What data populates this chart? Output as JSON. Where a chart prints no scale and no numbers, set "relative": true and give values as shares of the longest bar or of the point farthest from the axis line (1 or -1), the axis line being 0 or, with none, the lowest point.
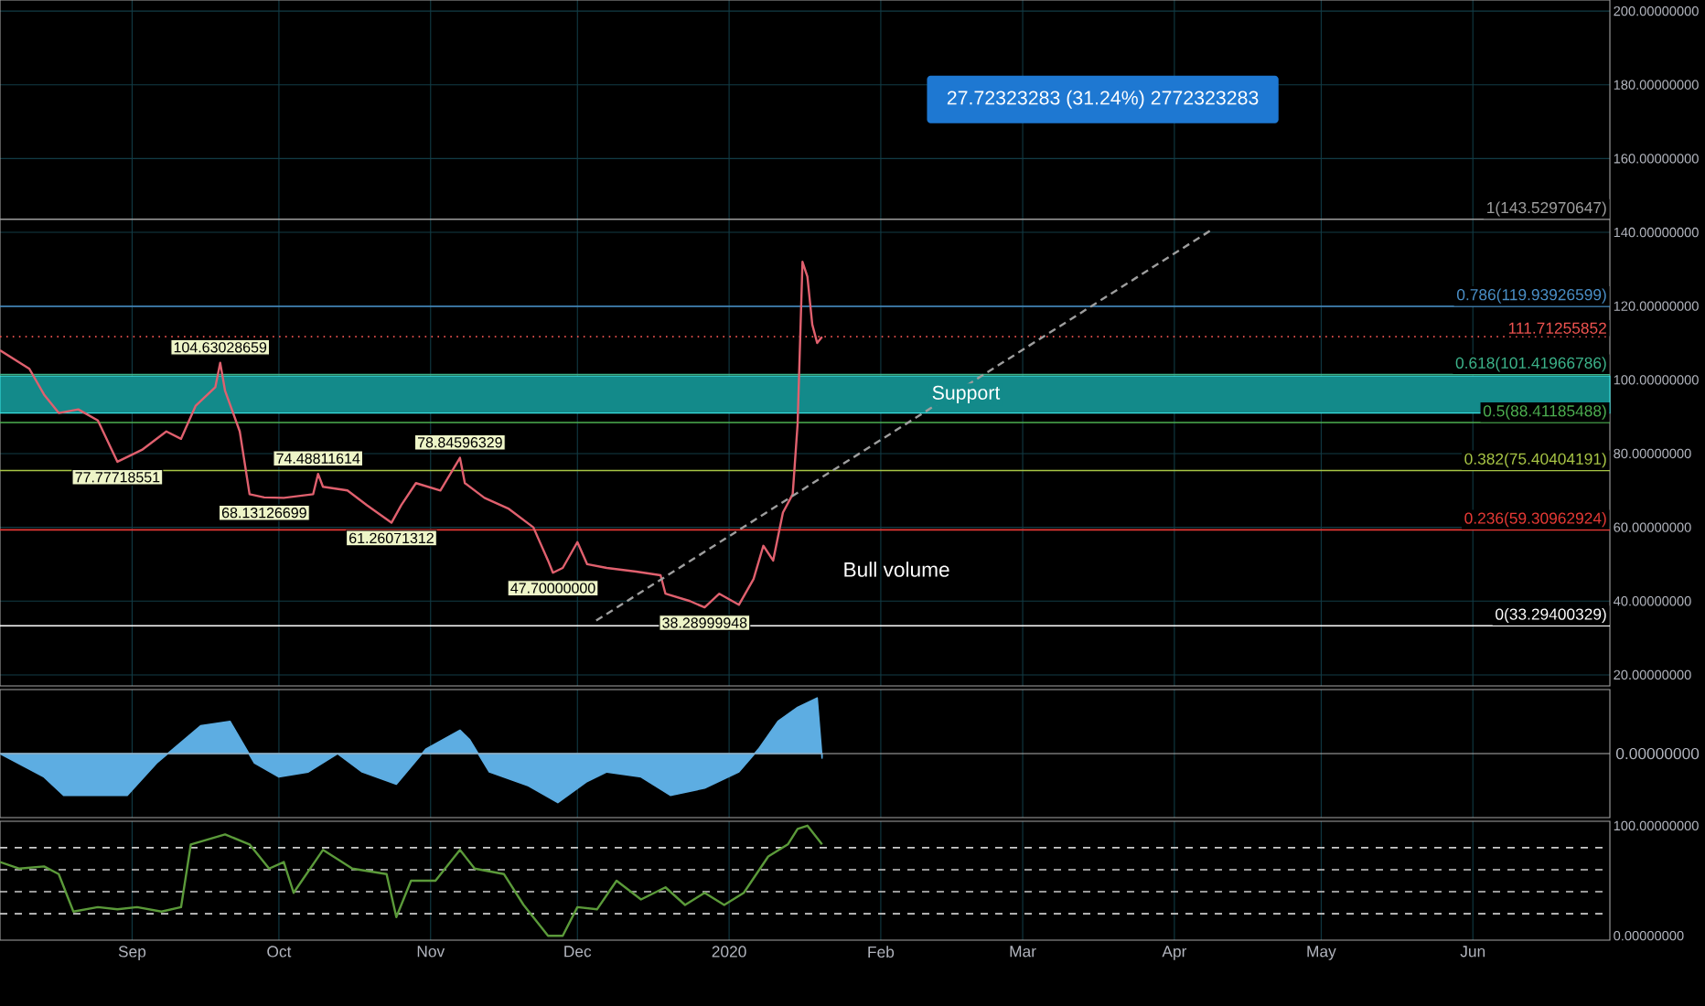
{
  "chart_data": [
    {
      "type": "line",
      "x": [
        "2019-08-05",
        "2019-08-11",
        "2019-08-14",
        "2019-08-17",
        "2019-08-21",
        "2019-08-25",
        "2019-08-29",
        "2019-09-03",
        "2019-09-08",
        "2019-09-11",
        "2019-09-14",
        "2019-09-18",
        "2019-09-19",
        "2019-09-20",
        "2019-09-23",
        "2019-09-25",
        "2019-09-28",
        "2019-10-02",
        "2019-10-08",
        "2019-10-09",
        "2019-10-10",
        "2019-10-15",
        "2019-10-19",
        "2019-10-24",
        "2019-10-26",
        "2019-10-29",
        "2019-11-03",
        "2019-11-07",
        "2019-11-08",
        "2019-11-12",
        "2019-11-17",
        "2019-11-22",
        "2019-11-25",
        "2019-11-26",
        "2019-11-28",
        "2019-12-01",
        "2019-12-03",
        "2019-12-07",
        "2019-12-13",
        "2019-12-18",
        "2019-12-19",
        "2019-12-24",
        "2019-12-27",
        "2019-12-30",
        "2020-01-03",
        "2020-01-06",
        "2020-01-08",
        "2020-01-10",
        "2020-01-12",
        "2020-01-14",
        "2020-01-15",
        "2020-01-16",
        "2020-01-17",
        "2020-01-18",
        "2020-01-19",
        "2020-01-20"
      ],
      "series": [
        {
          "color": "#e0606e",
          "values": [
            108,
            103,
            96,
            91,
            92,
            89,
            77.78,
            81,
            86,
            84,
            93,
            98,
            104.63,
            97,
            86,
            69,
            68.13,
            68,
            69,
            74.49,
            71,
            70,
            66,
            61.26,
            66,
            72,
            70,
            78.85,
            72,
            68,
            65,
            60,
            51,
            47.7,
            49,
            56,
            50,
            49,
            48,
            47,
            42,
            40,
            38.29,
            42,
            39,
            46,
            55,
            51,
            64,
            69,
            88,
            132,
            128,
            115,
            110,
            111.7
          ]
        },
        {
          "type": "line",
          "x": [
            "2019-12-04",
            "2020-04-09"
          ],
          "values": [
            34,
            141
          ],
          "color": "#9e9e9e",
          "line_style": "dashed"
        }
      ],
      "xlim": [
        "2019-08-05",
        "2020-06-29"
      ],
      "xticks": [
        {
          "value": "2019-09-01",
          "label": null
        },
        {
          "value": "2019-10-01",
          "label": null
        },
        {
          "value": "2019-11-01",
          "label": null
        },
        {
          "value": "2019-12-01",
          "label": null
        },
        {
          "value": "2020-01-01",
          "label": null
        },
        {
          "value": "2020-02-01",
          "label": null
        },
        {
          "value": "2020-03-01",
          "label": null
        },
        {
          "value": "2020-04-01",
          "label": null
        },
        {
          "value": "2020-05-01",
          "label": null
        },
        {
          "value": "2020-06-01",
          "label": null
        }
      ],
      "ylim": [
        17,
        203
      ],
      "yticks": [
        {
          "value": 20,
          "label": "20.00000000"
        },
        {
          "value": 40,
          "label": "40.00000000"
        },
        {
          "value": 60,
          "label": "60.00000000"
        },
        {
          "value": 80,
          "label": "80.00000000"
        },
        {
          "value": 100,
          "label": "100.00000000"
        },
        {
          "value": 120,
          "label": "120.00000000"
        },
        {
          "value": 140,
          "label": "140.00000000"
        },
        {
          "value": 160,
          "label": "160.00000000"
        },
        {
          "value": 180,
          "label": "180.00000000"
        },
        {
          "value": 200,
          "label": "200.00000000"
        }
      ],
      "tick_labels": "y",
      "grid": true,
      "ref_lines": [
        {
          "axis": "y",
          "value": 143.52970647,
          "label": "1(143.52970647)",
          "color": "#9e9e9e"
        },
        {
          "axis": "y",
          "value": 119.93926599,
          "label": "0.786(119.93926599)",
          "color": "#4a8fc7"
        },
        {
          "axis": "y",
          "value": 111.71255852,
          "label": "111.71255852",
          "color": "#ef5350",
          "line_style": "dotted"
        },
        {
          "axis": "y",
          "value": 101.41966786,
          "label": "0.618(101.41966786)",
          "color": "#3cb38a"
        },
        {
          "axis": "y",
          "value": 88.41185488,
          "label": "0.5(88.41185488)",
          "color": "#4caf50"
        },
        {
          "axis": "y",
          "value": 75.40404191,
          "label": "0.382(75.40404191)",
          "color": "#a8c545"
        },
        {
          "axis": "y",
          "value": 59.30962924,
          "label": "0.236(59.30962924)",
          "color": "#e53935"
        },
        {
          "axis": "y",
          "value": 33.29400329,
          "label": "0(33.29400329)",
          "color": "#ffffff"
        }
      ],
      "bands": [
        {
          "axis": "y",
          "from": 91,
          "to": 101,
          "label": "Support",
          "color": "#138a8a"
        }
      ],
      "annotations": [
        "27.72323283 (31.24%) 2772323283",
        "Bull volume",
        {
          "text": "104.63028659",
          "x": "2019-09-19",
          "y": 104.63
        },
        {
          "text": "77.77718551",
          "x": "2019-08-29",
          "y": 77.78
        },
        {
          "text": "68.13126699",
          "x": "2019-09-28",
          "y": 68.13
        },
        {
          "text": "74.48811614",
          "x": "2019-10-09",
          "y": 74.49
        },
        {
          "text": "78.84596329",
          "x": "2019-11-07",
          "y": 78.85
        },
        {
          "text": "61.26071312",
          "x": "2019-10-24",
          "y": 61.26
        },
        {
          "text": "47.70000000",
          "x": "2019-11-26",
          "y": 47.7
        },
        {
          "text": "38.28999948",
          "x": "2019-12-27",
          "y": 38.29
        }
      ]
    },
    {
      "type": "area",
      "relative": true,
      "x": [
        "2019-08-05",
        "2019-08-14",
        "2019-08-18",
        "2019-08-31",
        "2019-09-06",
        "2019-09-15",
        "2019-09-21",
        "2019-09-26",
        "2019-10-01",
        "2019-10-07",
        "2019-10-13",
        "2019-10-18",
        "2019-10-25",
        "2019-10-31",
        "2019-11-07",
        "2019-11-09",
        "2019-11-13",
        "2019-11-21",
        "2019-11-27",
        "2019-12-03",
        "2019-12-07",
        "2019-12-14",
        "2019-12-20",
        "2019-12-27",
        "2020-01-03",
        "2020-01-07",
        "2020-01-11",
        "2020-01-15",
        "2020-01-19",
        "2020-01-20"
      ],
      "series": [
        {
          "color": "#5dade2",
          "values": [
            0,
            -0.42,
            -0.75,
            -0.75,
            -0.17,
            0.5,
            0.58,
            -0.17,
            -0.42,
            -0.33,
            0,
            -0.33,
            -0.55,
            0.08,
            0.42,
            0.25,
            -0.33,
            -0.58,
            -0.88,
            -0.5,
            -0.33,
            -0.42,
            -0.75,
            -0.62,
            -0.33,
            0.08,
            0.58,
            0.83,
            1,
            -0.08
          ]
        }
      ],
      "xlim": [
        "2019-08-05",
        "2020-06-29"
      ],
      "xticks": [
        {
          "value": "2019-09-01",
          "label": null
        },
        {
          "value": "2019-10-01",
          "label": null
        },
        {
          "value": "2019-11-01",
          "label": null
        },
        {
          "value": "2019-12-01",
          "label": null
        },
        {
          "value": "2020-01-01",
          "label": null
        },
        {
          "value": "2020-02-01",
          "label": null
        },
        {
          "value": "2020-03-01",
          "label": null
        },
        {
          "value": "2020-04-01",
          "label": null
        },
        {
          "value": "2020-05-01",
          "label": null
        },
        {
          "value": "2020-06-01",
          "label": null
        }
      ],
      "tick_labels": false,
      "grid": "x",
      "annotations": [
        "0.00000000"
      ]
    },
    {
      "type": "line",
      "x": [
        "2019-08-05",
        "2019-08-09",
        "2019-08-14",
        "2019-08-17",
        "2019-08-20",
        "2019-08-25",
        "2019-08-29",
        "2019-09-02",
        "2019-09-07",
        "2019-09-11",
        "2019-09-13",
        "2019-09-20",
        "2019-09-25",
        "2019-09-29",
        "2019-10-02",
        "2019-10-04",
        "2019-10-10",
        "2019-10-16",
        "2019-10-23",
        "2019-10-25",
        "2019-10-28",
        "2019-11-02",
        "2019-11-07",
        "2019-11-10",
        "2019-11-16",
        "2019-11-20",
        "2019-11-25",
        "2019-11-28",
        "2019-12-01",
        "2019-12-05",
        "2019-12-09",
        "2019-12-14",
        "2019-12-19",
        "2019-12-23",
        "2019-12-27",
        "2019-12-31",
        "2020-01-04",
        "2020-01-09",
        "2020-01-13",
        "2020-01-15",
        "2020-01-17",
        "2020-01-20"
      ],
      "series": [
        {
          "color": "#5b9a3a",
          "values": [
            67,
            61,
            63,
            56,
            22,
            26,
            24,
            26,
            22,
            26,
            83,
            92,
            83,
            61,
            67,
            39,
            78,
            61,
            56,
            17,
            50,
            50,
            78,
            61,
            56,
            28,
            0,
            0,
            26,
            24,
            50,
            33,
            44,
            28,
            39,
            28,
            39,
            72,
            83,
            97,
            100,
            83
          ]
        }
      ],
      "xlim": [
        "2019-08-05",
        "2020-06-29"
      ],
      "xticks": [
        {
          "value": "2019-09-01",
          "label": "Sep"
        },
        {
          "value": "2019-10-01",
          "label": "Oct"
        },
        {
          "value": "2019-11-01",
          "label": "Nov"
        },
        {
          "value": "2019-12-01",
          "label": "Dec"
        },
        {
          "value": "2020-01-01",
          "label": "2020"
        },
        {
          "value": "2020-02-01",
          "label": "Feb"
        },
        {
          "value": "2020-03-01",
          "label": "Mar"
        },
        {
          "value": "2020-04-01",
          "label": "Apr"
        },
        {
          "value": "2020-05-01",
          "label": "May"
        },
        {
          "value": "2020-06-01",
          "label": "Jun"
        }
      ],
      "ylim": [
        -4,
        104
      ],
      "yticks": [
        {
          "value": 0,
          "label": "0.00000000"
        },
        {
          "value": 100,
          "label": "100.00000000"
        }
      ],
      "grid": "x",
      "ref_lines": [
        {
          "axis": "y",
          "value": 80,
          "color": "#cccccc",
          "line_style": "dashed"
        },
        {
          "axis": "y",
          "value": 60,
          "color": "#cccccc",
          "line_style": "dashed"
        },
        {
          "axis": "y",
          "value": 40,
          "color": "#cccccc",
          "line_style": "dashed"
        },
        {
          "axis": "y",
          "value": 20,
          "color": "#cccccc",
          "line_style": "dashed"
        }
      ]
    }
  ]
}
